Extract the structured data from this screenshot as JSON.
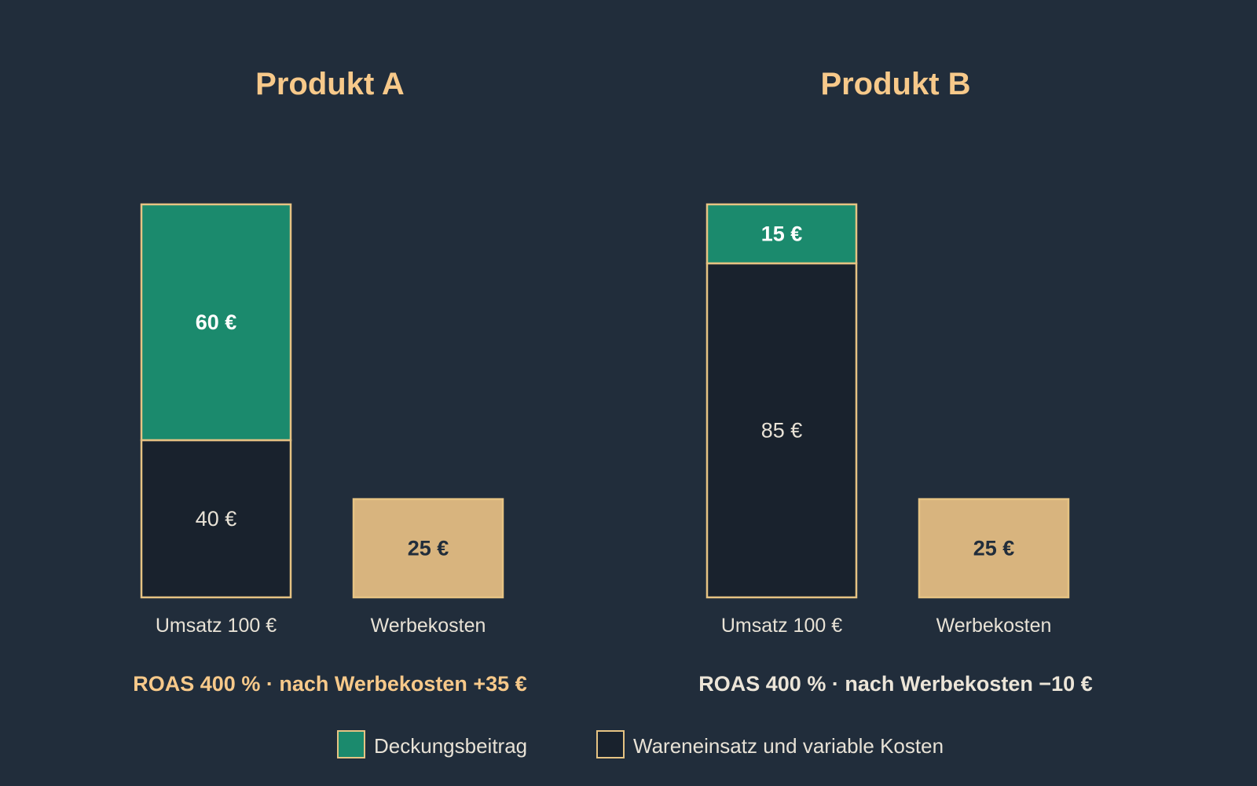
{
  "colors": {
    "background": "#212d3b",
    "title": "#f7c98a",
    "margin_fill": "#1b8a6d",
    "cost_fill": "#19222d",
    "ad_fill": "#d8b47e",
    "outline": "#e6c383",
    "label_light": "#e8e2d6",
    "label_white": "#ffffff",
    "label_dark": "#212d3b",
    "summary_positive": "#f7c98a",
    "summary_negative": "#ece5d8"
  },
  "chart_data": [
    {
      "type": "bar",
      "stacked": true,
      "title": "Produkt A",
      "categories": [
        "Umsatz 100 €",
        "Werbekosten"
      ],
      "series": [
        {
          "name": "Deckungsbeitrag",
          "values": [
            60,
            null
          ],
          "labels": [
            "60 €",
            null
          ]
        },
        {
          "name": "Wareneinsatz und variable Kosten",
          "values": [
            40,
            null
          ],
          "labels": [
            "40 €",
            null
          ]
        },
        {
          "values": [
            null,
            25
          ],
          "labels": [
            null,
            "25 €"
          ]
        }
      ],
      "ylim": [
        0,
        100
      ],
      "grid": false,
      "summary": "ROAS 400 % · nach Werbekosten +35 €",
      "summary_tone": "positive"
    },
    {
      "type": "bar",
      "stacked": true,
      "title": "Produkt B",
      "categories": [
        "Umsatz 100 €",
        "Werbekosten"
      ],
      "series": [
        {
          "name": "Deckungsbeitrag",
          "values": [
            15,
            null
          ],
          "labels": [
            "15 €",
            null
          ]
        },
        {
          "name": "Wareneinsatz und variable Kosten",
          "values": [
            85,
            null
          ],
          "labels": [
            "85 €",
            null
          ]
        },
        {
          "values": [
            null,
            25
          ],
          "labels": [
            null,
            "25 €"
          ]
        }
      ],
      "ylim": [
        0,
        100
      ],
      "grid": false,
      "summary": "ROAS 400 % · nach Werbekosten −10 €",
      "summary_tone": "negative"
    }
  ],
  "legend": {
    "placement": "bottom",
    "items": [
      {
        "label": "Deckungsbeitrag",
        "color": "#1b8a6d"
      },
      {
        "label": "Wareneinsatz und variable Kosten",
        "color": "#19222d"
      }
    ]
  }
}
